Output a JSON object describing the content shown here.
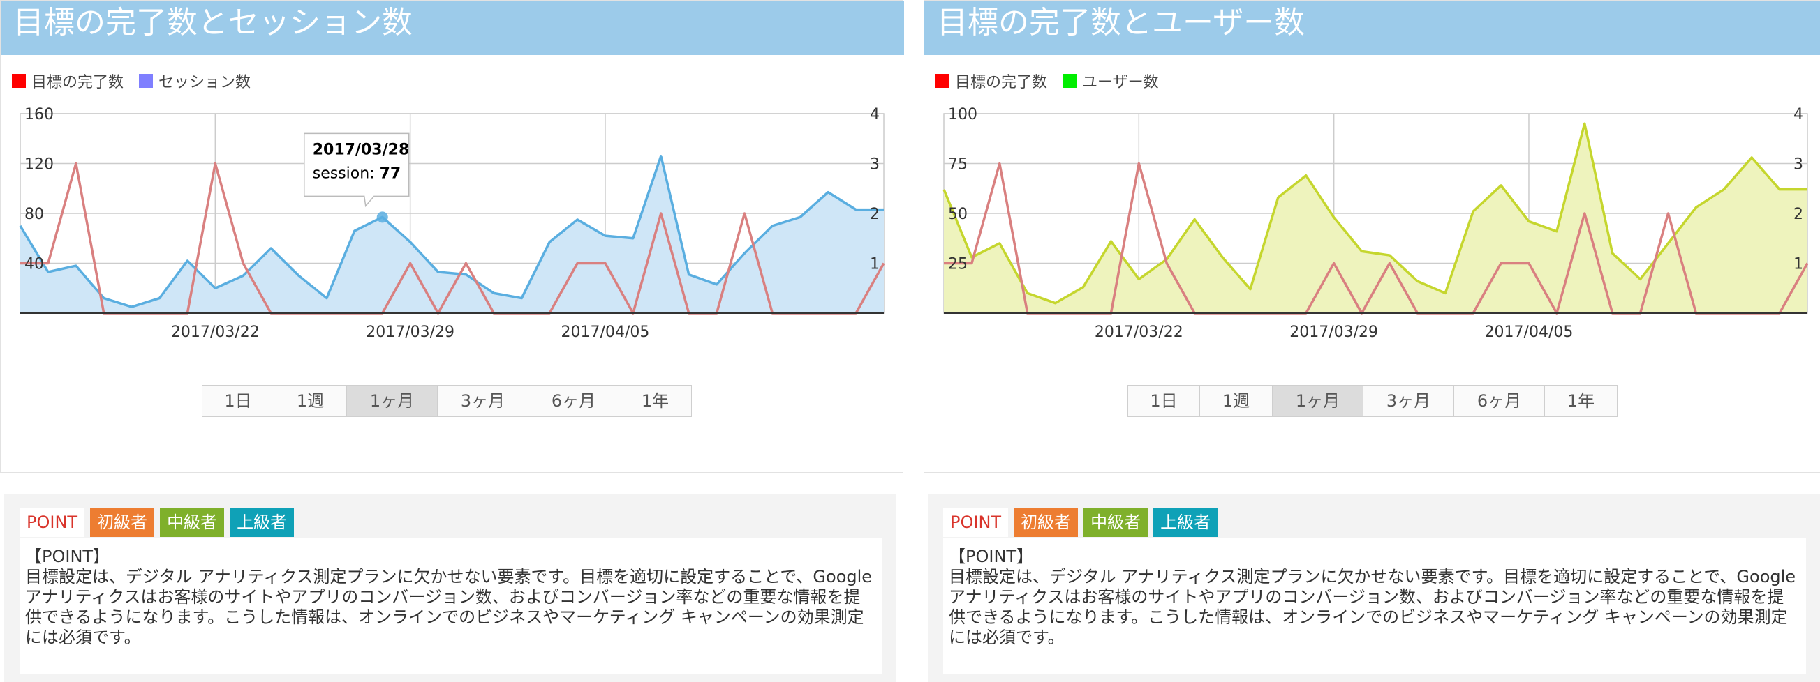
{
  "panels": [
    {
      "title": "目標の完了数とセッション数",
      "legend": [
        {
          "label": "目標の完了数",
          "color": "#ff0000"
        },
        {
          "label": "セッション数",
          "color": "#7f7fff"
        }
      ],
      "ranges": [
        "1日",
        "1週",
        "1ヶ月",
        "3ヶ月",
        "6ヶ月",
        "1年"
      ],
      "active_range": "1ヶ月",
      "tooltip": {
        "date": "2017/03/28",
        "label": "session:",
        "value": "77"
      },
      "point": {
        "tags": [
          "POINT",
          "初級者",
          "中級者",
          "上級者"
        ],
        "heading": "【POINT】",
        "body": "目標設定は、デジタル アナリティクス測定プランに欠かせない要素です。目標を適切に設定することで、Google アナリティクスはお客様のサイトやアプリのコンバージョン数、およびコンバージョン率などの重要な情報を提供できるようになります。こうした情報は、オンラインでのビジネスやマーケティング キャンペーンの効果測定には必須です。"
      }
    },
    {
      "title": "目標の完了数とユーザー数",
      "legend": [
        {
          "label": "目標の完了数",
          "color": "#ff0000"
        },
        {
          "label": "ユーザー数",
          "color": "#00ee00"
        }
      ],
      "ranges": [
        "1日",
        "1週",
        "1ヶ月",
        "3ヶ月",
        "6ヶ月",
        "1年"
      ],
      "active_range": "1ヶ月",
      "point": {
        "tags": [
          "POINT",
          "初級者",
          "中級者",
          "上級者"
        ],
        "heading": "【POINT】",
        "body": "目標設定は、デジタル アナリティクス測定プランに欠かせない要素です。目標を適切に設定することで、Google アナリティクスはお客様のサイトやアプリのコンバージョン数、およびコンバージョン率などの重要な情報を提供できるようになります。こうした情報は、オンラインでのビジネスやマーケティング キャンペーンの効果測定には必須です。"
      }
    }
  ],
  "chart_data": [
    {
      "type": "area",
      "x": [
        "2017/03/15",
        "2017/03/16",
        "2017/03/17",
        "2017/03/18",
        "2017/03/19",
        "2017/03/20",
        "2017/03/21",
        "2017/03/22",
        "2017/03/23",
        "2017/03/24",
        "2017/03/25",
        "2017/03/26",
        "2017/03/27",
        "2017/03/28",
        "2017/03/29",
        "2017/03/30",
        "2017/03/31",
        "2017/04/01",
        "2017/04/02",
        "2017/04/03",
        "2017/04/04",
        "2017/04/05",
        "2017/04/06",
        "2017/04/07",
        "2017/04/08",
        "2017/04/09",
        "2017/04/10",
        "2017/04/11",
        "2017/04/12",
        "2017/04/13",
        "2017/04/14",
        "2017/04/15"
      ],
      "x_tick_labels": [
        "2017/03/22",
        "2017/03/29",
        "2017/04/05"
      ],
      "left_axis": {
        "ticks": [
          40,
          80,
          120,
          160
        ],
        "range": [
          0,
          160
        ]
      },
      "right_axis": {
        "ticks": [
          1,
          2,
          3,
          4
        ],
        "range": [
          0,
          4
        ]
      },
      "series": [
        {
          "axis": "left",
          "color": "#5aaee0",
          "fill": "#cfe6f7",
          "values": [
            70,
            33,
            38,
            12,
            5,
            12,
            42,
            20,
            30,
            52,
            30,
            12,
            66,
            77,
            57,
            33,
            31,
            16,
            12,
            57,
            75,
            62,
            60,
            126,
            31,
            23,
            48,
            70,
            77,
            97,
            83,
            83
          ]
        },
        {
          "axis": "right",
          "color": "#d98080",
          "values": [
            1,
            1,
            3,
            0,
            0,
            0,
            0,
            3,
            1,
            0,
            0,
            0,
            0,
            0,
            1,
            0,
            1,
            0,
            0,
            0,
            1,
            1,
            0,
            2,
            0,
            0,
            2,
            0,
            0,
            0,
            0,
            1
          ]
        }
      ]
    },
    {
      "type": "area",
      "x": [
        "2017/03/15",
        "2017/03/16",
        "2017/03/17",
        "2017/03/18",
        "2017/03/19",
        "2017/03/20",
        "2017/03/21",
        "2017/03/22",
        "2017/03/23",
        "2017/03/24",
        "2017/03/25",
        "2017/03/26",
        "2017/03/27",
        "2017/03/28",
        "2017/03/29",
        "2017/03/30",
        "2017/03/31",
        "2017/04/01",
        "2017/04/02",
        "2017/04/03",
        "2017/04/04",
        "2017/04/05",
        "2017/04/06",
        "2017/04/07",
        "2017/04/08",
        "2017/04/09",
        "2017/04/10",
        "2017/04/11",
        "2017/04/12",
        "2017/04/13",
        "2017/04/14",
        "2017/04/15"
      ],
      "x_tick_labels": [
        "2017/03/22",
        "2017/03/29",
        "2017/04/05"
      ],
      "left_axis": {
        "ticks": [
          25,
          50,
          75,
          100
        ],
        "range": [
          0,
          100
        ]
      },
      "right_axis": {
        "ticks": [
          1,
          2,
          3,
          4
        ],
        "range": [
          0,
          4
        ]
      },
      "series": [
        {
          "axis": "left",
          "color": "#c5d62e",
          "fill": "#eef3bd",
          "values": [
            62,
            28,
            35,
            10,
            5,
            13,
            36,
            17,
            27,
            47,
            28,
            12,
            58,
            69,
            48,
            31,
            29,
            16,
            10,
            51,
            64,
            46,
            41,
            95,
            30,
            17,
            35,
            53,
            62,
            78,
            62,
            62
          ]
        },
        {
          "axis": "right",
          "color": "#d98080",
          "values": [
            1,
            1,
            3,
            0,
            0,
            0,
            0,
            3,
            1,
            0,
            0,
            0,
            0,
            0,
            1,
            0,
            1,
            0,
            0,
            0,
            1,
            1,
            0,
            2,
            0,
            0,
            2,
            0,
            0,
            0,
            0,
            1
          ]
        }
      ]
    }
  ]
}
